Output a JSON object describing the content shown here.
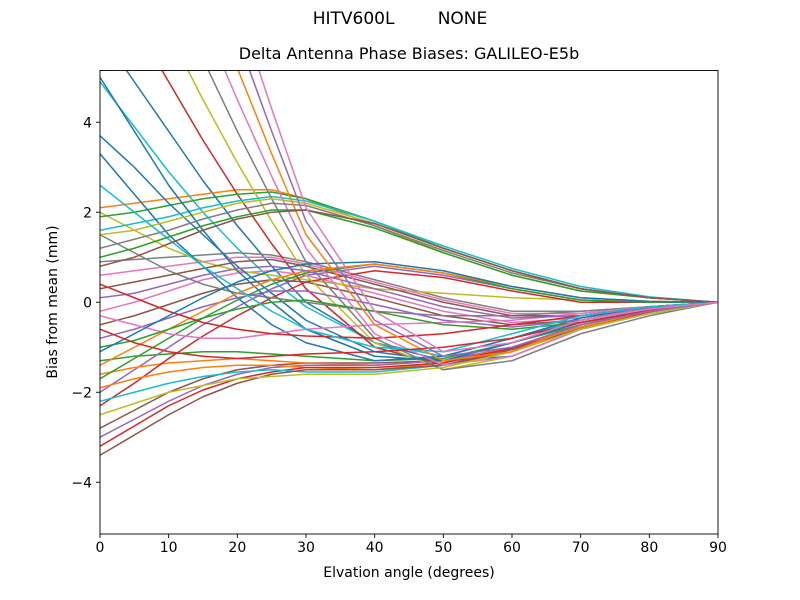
{
  "figure": {
    "suptitle": "HITV600L        NONE",
    "background": "#ffffff",
    "spine_color": "#000000",
    "text_color": "#000000"
  },
  "chart_data": {
    "type": "line",
    "title": "Delta Antenna Phase Biases: GALILEO-E5b",
    "xlabel": "Elvation angle (degrees)",
    "ylabel": "Bias from mean (mm)",
    "xlim": [
      0,
      90
    ],
    "ylim": [
      -5.15,
      5.15
    ],
    "x_ticks": [
      0,
      10,
      20,
      30,
      40,
      50,
      60,
      70,
      80,
      90
    ],
    "x_tick_labels": [
      "0",
      "10",
      "20",
      "30",
      "40",
      "50",
      "60",
      "70",
      "80",
      "90"
    ],
    "y_ticks": [
      -4,
      -2,
      0,
      2,
      4
    ],
    "y_tick_labels": [
      "−4",
      "−2",
      "0",
      "2",
      "4"
    ],
    "grid": false,
    "legend": "none",
    "palette": [
      "#1f77b4",
      "#ff7f0e",
      "#2ca02c",
      "#d62728",
      "#9467bd",
      "#8c564b",
      "#e377c2",
      "#7f7f7f",
      "#bcbd22",
      "#17becf"
    ],
    "x": [
      0,
      5,
      10,
      15,
      20,
      25,
      30,
      40,
      50,
      60,
      70,
      80,
      90
    ],
    "series": [
      {
        "color": "#1f77b4",
        "values": [
          6.0,
          4.9,
          3.8,
          2.7,
          1.7,
          0.8,
          0.0,
          -0.9,
          -1.3,
          -1.2,
          -0.6,
          -0.25,
          0
        ]
      },
      {
        "color": "#ff7f0e",
        "values": [
          2.1,
          2.2,
          2.3,
          2.4,
          2.5,
          2.5,
          2.3,
          1.7,
          1.1,
          0.6,
          0.25,
          0.1,
          0
        ]
      },
      {
        "color": "#2ca02c",
        "values": [
          -1.3,
          -1.2,
          -1.15,
          -1.1,
          -1.1,
          -1.15,
          -1.2,
          -1.3,
          -1.25,
          -0.9,
          -0.5,
          -0.2,
          0
        ]
      },
      {
        "color": "#17becf",
        "values": [
          4.9,
          3.9,
          2.9,
          2.0,
          1.2,
          0.5,
          -0.1,
          -0.9,
          -1.2,
          -0.8,
          -0.4,
          -0.15,
          0
        ]
      },
      {
        "color": "#9467bd",
        "values": [
          -2.0,
          -1.5,
          -1.0,
          -0.5,
          -0.1,
          0.3,
          0.6,
          0.8,
          0.6,
          0.3,
          0.05,
          0.0,
          0
        ]
      },
      {
        "color": "#8c564b",
        "values": [
          -2.8,
          -2.4,
          -2.0,
          -1.7,
          -1.5,
          -1.4,
          -1.35,
          -1.35,
          -1.3,
          -1.0,
          -0.55,
          -0.2,
          0
        ]
      },
      {
        "color": "#e377c2",
        "values": [
          -0.2,
          0.0,
          0.25,
          0.5,
          0.65,
          0.7,
          0.6,
          0.2,
          -0.2,
          -0.45,
          -0.35,
          -0.15,
          0
        ]
      },
      {
        "color": "#7f7f7f",
        "values": [
          0.9,
          0.95,
          1.0,
          1.05,
          1.1,
          1.05,
          0.9,
          0.5,
          0.1,
          -0.2,
          -0.2,
          -0.1,
          0
        ]
      },
      {
        "color": "#bcbd22",
        "values": [
          2.0,
          1.6,
          1.2,
          0.9,
          0.7,
          0.6,
          0.5,
          0.3,
          0.2,
          0.1,
          0.05,
          0.0,
          0
        ]
      },
      {
        "color": "#d62728",
        "values": [
          7.5,
          6.2,
          4.9,
          3.6,
          2.4,
          1.3,
          0.3,
          -1.0,
          -1.4,
          -1.1,
          -0.5,
          -0.2,
          0
        ]
      },
      {
        "color": "#2ca02c",
        "values": [
          1.9,
          2.0,
          2.15,
          2.3,
          2.4,
          2.45,
          2.3,
          1.8,
          1.2,
          0.7,
          0.3,
          0.1,
          0
        ]
      },
      {
        "color": "#ff7f0e",
        "values": [
          -1.6,
          -1.45,
          -1.35,
          -1.3,
          -1.25,
          -1.3,
          -1.35,
          -1.4,
          -1.3,
          -1.0,
          -0.55,
          -0.2,
          0
        ]
      },
      {
        "color": "#1f77b4",
        "values": [
          3.7,
          3.0,
          2.2,
          1.5,
          0.8,
          0.2,
          -0.4,
          -1.1,
          -1.3,
          -0.9,
          -0.4,
          -0.15,
          0
        ]
      },
      {
        "color": "#d62728",
        "values": [
          -2.3,
          -1.8,
          -1.25,
          -0.75,
          -0.3,
          0.1,
          0.45,
          0.7,
          0.55,
          0.25,
          0.0,
          0.0,
          0
        ]
      },
      {
        "color": "#9467bd",
        "values": [
          -3.0,
          -2.6,
          -2.2,
          -1.85,
          -1.6,
          -1.45,
          -1.4,
          -1.4,
          -1.3,
          -1.0,
          -0.58,
          -0.22,
          0
        ]
      },
      {
        "color": "#8c564b",
        "values": [
          -0.5,
          -0.3,
          -0.05,
          0.2,
          0.4,
          0.5,
          0.45,
          0.1,
          -0.3,
          -0.5,
          -0.4,
          -0.15,
          0
        ]
      },
      {
        "color": "#e377c2",
        "values": [
          0.6,
          0.7,
          0.8,
          0.9,
          1.0,
          1.0,
          0.85,
          0.45,
          0.05,
          -0.25,
          -0.25,
          -0.1,
          0
        ]
      },
      {
        "color": "#7f7f7f",
        "values": [
          1.5,
          1.1,
          0.7,
          0.4,
          0.2,
          0.1,
          0.0,
          -0.2,
          -0.3,
          -0.3,
          -0.2,
          -0.1,
          0
        ]
      },
      {
        "color": "#bcbd22",
        "values": [
          9.0,
          7.5,
          6.0,
          4.5,
          3.1,
          1.8,
          0.6,
          -0.9,
          -1.5,
          -1.2,
          -0.6,
          -0.2,
          0
        ]
      },
      {
        "color": "#17becf",
        "values": [
          1.6,
          1.75,
          1.9,
          2.1,
          2.25,
          2.35,
          2.25,
          1.8,
          1.25,
          0.75,
          0.35,
          0.12,
          0
        ]
      },
      {
        "color": "#ff7f0e",
        "values": [
          -1.9,
          -1.7,
          -1.55,
          -1.45,
          -1.4,
          -1.4,
          -1.45,
          -1.5,
          -1.35,
          -1.0,
          -0.55,
          -0.22,
          0
        ]
      },
      {
        "color": "#1f77b4",
        "values": [
          3.3,
          2.4,
          1.5,
          0.8,
          0.1,
          -0.5,
          -0.9,
          -1.3,
          -1.2,
          -0.8,
          -0.35,
          -0.1,
          0
        ]
      },
      {
        "color": "#2ca02c",
        "values": [
          -1.7,
          -1.25,
          -0.8,
          -0.35,
          0.05,
          0.4,
          0.65,
          0.85,
          0.65,
          0.3,
          0.05,
          0.0,
          0
        ]
      },
      {
        "color": "#d62728",
        "values": [
          -3.2,
          -2.75,
          -2.3,
          -1.95,
          -1.7,
          -1.55,
          -1.45,
          -1.45,
          -1.35,
          -1.02,
          -0.6,
          -0.22,
          0
        ]
      },
      {
        "color": "#9467bd",
        "values": [
          -0.8,
          -0.6,
          -0.35,
          -0.1,
          0.1,
          0.25,
          0.25,
          -0.05,
          -0.4,
          -0.55,
          -0.4,
          -0.15,
          0
        ]
      },
      {
        "color": "#8c564b",
        "values": [
          0.3,
          0.45,
          0.6,
          0.75,
          0.9,
          0.95,
          0.8,
          0.4,
          0.0,
          -0.3,
          -0.3,
          -0.12,
          0
        ]
      },
      {
        "color": "#e377c2",
        "values": [
          -0.3,
          -0.5,
          -0.7,
          -0.8,
          -0.8,
          -0.7,
          -0.6,
          -0.5,
          -0.45,
          -0.4,
          -0.25,
          -0.1,
          0
        ]
      },
      {
        "color": "#7f7f7f",
        "values": [
          10.5,
          8.8,
          7.1,
          5.4,
          3.8,
          2.3,
          0.9,
          -0.8,
          -1.5,
          -1.3,
          -0.7,
          -0.3,
          0
        ]
      },
      {
        "color": "#bcbd22",
        "values": [
          1.5,
          1.6,
          1.8,
          2.0,
          2.2,
          2.3,
          2.2,
          1.75,
          1.2,
          0.7,
          0.3,
          0.1,
          0
        ]
      },
      {
        "color": "#17becf",
        "values": [
          -2.2,
          -2.0,
          -1.8,
          -1.65,
          -1.55,
          -1.5,
          -1.55,
          -1.55,
          -1.4,
          -1.05,
          -0.6,
          -0.25,
          0
        ]
      },
      {
        "color": "#1f77b4",
        "values": [
          5.0,
          3.8,
          2.6,
          1.6,
          0.7,
          0.0,
          -0.6,
          -1.2,
          -1.3,
          -0.9,
          -0.45,
          -0.2,
          0
        ]
      },
      {
        "color": "#ff7f0e",
        "values": [
          -1.4,
          -1.0,
          -0.6,
          -0.2,
          0.2,
          0.5,
          0.7,
          0.85,
          0.65,
          0.35,
          0.1,
          0.02,
          0
        ]
      },
      {
        "color": "#8c564b",
        "values": [
          -3.4,
          -2.95,
          -2.5,
          -2.1,
          -1.8,
          -1.6,
          -1.5,
          -1.5,
          -1.4,
          -1.05,
          -0.6,
          -0.25,
          0
        ]
      },
      {
        "color": "#2ca02c",
        "values": [
          -1.0,
          -0.85,
          -0.6,
          -0.35,
          -0.15,
          0.0,
          0.05,
          -0.2,
          -0.5,
          -0.6,
          -0.45,
          -0.18,
          0
        ]
      },
      {
        "color": "#9467bd",
        "values": [
          0.1,
          0.2,
          0.4,
          0.6,
          0.75,
          0.8,
          0.7,
          0.3,
          -0.1,
          -0.35,
          -0.3,
          -0.12,
          0
        ]
      },
      {
        "color": "#d62728",
        "values": [
          0.4,
          0.1,
          -0.2,
          -0.45,
          -0.6,
          -0.7,
          -0.75,
          -0.8,
          -0.7,
          -0.5,
          -0.3,
          -0.1,
          0
        ]
      },
      {
        "color": "#e377c2",
        "values": [
          12.0,
          10.1,
          8.2,
          6.3,
          4.5,
          2.8,
          1.2,
          -0.7,
          -1.4,
          -1.2,
          -0.6,
          -0.25,
          0
        ]
      },
      {
        "color": "#7f7f7f",
        "values": [
          1.2,
          1.4,
          1.6,
          1.85,
          2.05,
          2.2,
          2.15,
          1.7,
          1.15,
          0.65,
          0.3,
          0.1,
          0
        ]
      },
      {
        "color": "#bcbd22",
        "values": [
          -2.5,
          -2.25,
          -2.0,
          -1.85,
          -1.7,
          -1.65,
          -1.6,
          -1.6,
          -1.45,
          -1.1,
          -0.6,
          -0.25,
          0
        ]
      },
      {
        "color": "#17becf",
        "values": [
          2.6,
          2.0,
          1.4,
          0.8,
          0.3,
          -0.2,
          -0.6,
          -1.0,
          -1.1,
          -0.7,
          -0.3,
          -0.1,
          0
        ]
      },
      {
        "color": "#1f77b4",
        "values": [
          -1.1,
          -0.7,
          -0.3,
          0.1,
          0.45,
          0.7,
          0.85,
          0.9,
          0.7,
          0.35,
          0.1,
          0.02,
          0
        ]
      },
      {
        "color": "#ff7f0e",
        "values": [
          13.5,
          11.4,
          9.3,
          7.2,
          5.2,
          3.3,
          1.5,
          -0.5,
          -1.3,
          -1.1,
          -0.5,
          -0.2,
          0
        ]
      },
      {
        "color": "#2ca02c",
        "values": [
          1.0,
          1.2,
          1.45,
          1.7,
          1.9,
          2.05,
          2.05,
          1.65,
          1.1,
          0.6,
          0.25,
          0.1,
          0
        ]
      },
      {
        "color": "#d62728",
        "values": [
          -0.6,
          -0.9,
          -1.1,
          -1.2,
          -1.25,
          -1.2,
          -1.15,
          -1.1,
          -1.0,
          -0.8,
          -0.45,
          -0.18,
          0
        ]
      },
      {
        "color": "#9467bd",
        "values": [
          15.0,
          12.7,
          10.4,
          8.1,
          5.9,
          3.8,
          1.8,
          -0.4,
          -1.2,
          -1.0,
          -0.5,
          -0.2,
          0
        ]
      },
      {
        "color": "#8c564b",
        "values": [
          0.8,
          1.0,
          1.3,
          1.6,
          1.85,
          2.0,
          2.05,
          1.75,
          1.2,
          0.7,
          0.3,
          0.1,
          0
        ]
      },
      {
        "color": "#e377c2",
        "values": [
          16.5,
          14.0,
          11.5,
          9.0,
          6.6,
          4.3,
          2.1,
          -0.2,
          -1.1,
          -0.9,
          -0.4,
          -0.15,
          0
        ]
      }
    ]
  }
}
